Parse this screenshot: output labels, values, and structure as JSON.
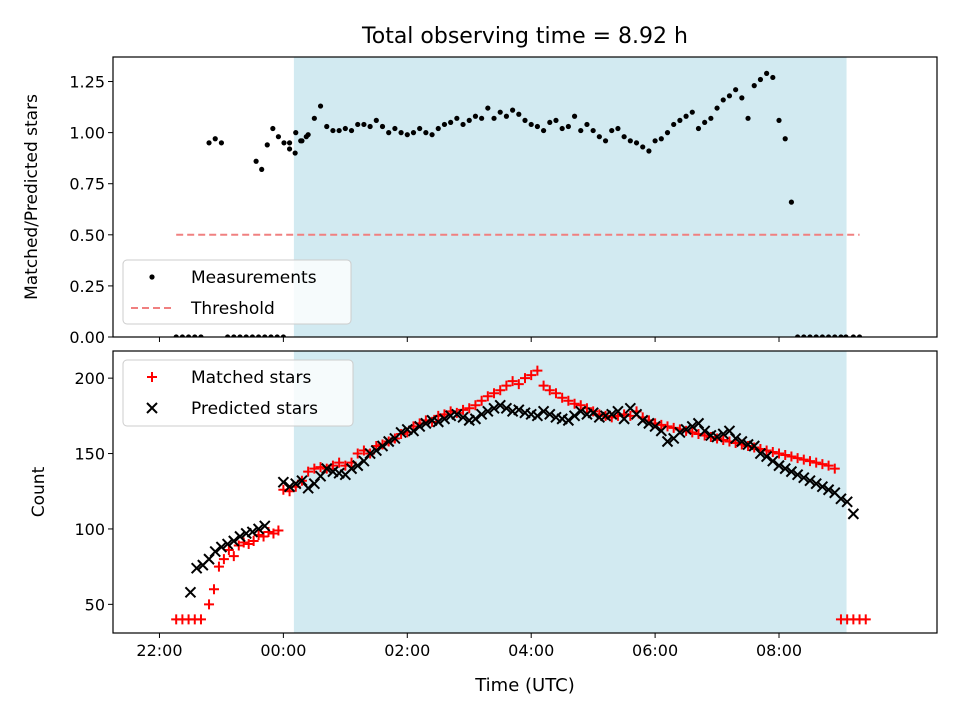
{
  "figure": {
    "title": "Total observing time = 8.92 h",
    "xlabel": "Time (UTC)",
    "x_tick_labels": [
      "22:00",
      "00:00",
      "02:00",
      "04:00",
      "06:00",
      "08:00"
    ],
    "colors": {
      "span": "#add8e6",
      "measurements": "#000000",
      "threshold": "#f08080",
      "matched": "#ff0000",
      "predicted": "#000000"
    }
  },
  "chart_data": [
    {
      "type": "scatter",
      "ylabel": "Matched/Predicted stars",
      "x_unit": "hours since 00:00 UTC",
      "xlim": [
        -2.75,
        10.55
      ],
      "ylim": [
        0,
        1.37
      ],
      "yticks": [
        0.0,
        0.25,
        0.5,
        0.75,
        1.0,
        1.25
      ],
      "ytick_labels": [
        "0.00",
        "0.25",
        "0.50",
        "0.75",
        "1.00",
        "1.25"
      ],
      "shaded_span": [
        0.17,
        9.09
      ],
      "legend_position": "lower-left",
      "series": [
        {
          "name": "Measurements",
          "kind": "scatter",
          "x": [
            -1.73,
            -1.63,
            -1.53,
            -1.43,
            -1.33,
            -0.44,
            -0.35,
            -0.26,
            -0.17,
            -0.08,
            0.01,
            0.1,
            0.19,
            0.28,
            0.37,
            -1.2,
            -1.1,
            -1.0,
            -0.9,
            -0.8,
            -0.7,
            -0.6,
            -0.5,
            -0.4,
            -0.3,
            -0.2,
            -0.1,
            0.0,
            0.1,
            0.2,
            0.3,
            0.4,
            0.5,
            0.6,
            0.7,
            0.8,
            0.9,
            1.0,
            1.1,
            1.2,
            1.3,
            1.4,
            1.5,
            1.6,
            1.7,
            1.8,
            1.9,
            2.0,
            2.1,
            2.2,
            2.3,
            2.4,
            2.5,
            2.6,
            2.7,
            2.8,
            2.9,
            3.0,
            3.1,
            3.2,
            3.3,
            3.4,
            3.5,
            3.6,
            3.7,
            3.8,
            3.9,
            4.0,
            4.1,
            4.2,
            4.3,
            4.4,
            4.5,
            4.6,
            4.7,
            4.8,
            4.9,
            5.0,
            5.1,
            5.2,
            5.3,
            5.4,
            5.5,
            5.6,
            5.7,
            5.8,
            5.9,
            6.0,
            6.1,
            6.2,
            6.3,
            6.4,
            6.5,
            6.6,
            6.7,
            6.8,
            6.9,
            7.0,
            7.1,
            7.2,
            7.3,
            7.4,
            7.5,
            7.6,
            7.7,
            7.8,
            7.9,
            8.0,
            8.1,
            8.2,
            8.3,
            8.4,
            8.5,
            8.6,
            8.7,
            8.8,
            8.9,
            9.0,
            9.08,
            9.2,
            9.3
          ],
          "y": [
            0.0,
            0.0,
            0.0,
            0.0,
            0.0,
            0.86,
            0.82,
            0.94,
            1.02,
            0.98,
            0.95,
            0.92,
            0.9,
            0.96,
            0.98,
            0.95,
            0.97,
            0.95,
            0.0,
            0.0,
            0.0,
            0.0,
            0.0,
            0.0,
            0.0,
            0.0,
            0.0,
            0.0,
            0.95,
            1.0,
            0.96,
            0.99,
            1.07,
            1.13,
            1.03,
            1.01,
            1.01,
            1.02,
            1.01,
            1.04,
            1.04,
            1.03,
            1.06,
            1.03,
            1.0,
            1.02,
            1.0,
            0.99,
            1.0,
            1.02,
            1.0,
            0.99,
            1.02,
            1.04,
            1.05,
            1.07,
            1.04,
            1.06,
            1.08,
            1.07,
            1.12,
            1.07,
            1.1,
            1.08,
            1.11,
            1.09,
            1.06,
            1.04,
            1.03,
            1.01,
            1.05,
            1.06,
            1.02,
            1.03,
            1.08,
            1.01,
            1.04,
            1.01,
            0.98,
            0.96,
            1.01,
            1.02,
            0.98,
            0.96,
            0.95,
            0.93,
            0.91,
            0.96,
            0.97,
            1.0,
            1.04,
            1.06,
            1.08,
            1.1,
            1.02,
            1.05,
            1.07,
            1.12,
            1.16,
            1.18,
            1.21,
            1.17,
            1.07,
            1.23,
            1.26,
            1.29,
            1.27,
            1.06,
            0.97,
            0.66,
            0.0,
            0.0,
            0.0,
            0.0,
            0.0,
            0.0,
            0.0,
            0.0,
            0.0,
            0.0,
            0.0
          ]
        },
        {
          "name": "Threshold",
          "kind": "line",
          "x": [
            -1.73,
            9.3
          ],
          "y": [
            0.5,
            0.5
          ]
        }
      ]
    },
    {
      "type": "scatter",
      "ylabel": "Count",
      "x_unit": "hours since 00:00 UTC",
      "xlim": [
        -2.75,
        10.55
      ],
      "ylim": [
        31,
        218
      ],
      "yticks": [
        50,
        100,
        150,
        200
      ],
      "ytick_labels": [
        "50",
        "100",
        "150",
        "200"
      ],
      "shaded_span": [
        0.17,
        9.09
      ],
      "legend_position": "upper-left",
      "series": [
        {
          "name": "Matched stars",
          "kind": "plus",
          "x": [
            -1.73,
            -1.63,
            -1.53,
            -1.43,
            -1.33,
            -1.2,
            -1.12,
            -1.04,
            -0.96,
            -0.88,
            -0.8,
            -0.72,
            -0.64,
            -0.56,
            -0.48,
            -0.4,
            -0.32,
            -0.24,
            -0.16,
            -0.08,
            0.0,
            0.1,
            0.2,
            0.3,
            0.4,
            0.5,
            0.6,
            0.7,
            0.8,
            0.9,
            1.0,
            1.1,
            1.2,
            1.3,
            1.4,
            1.5,
            1.6,
            1.7,
            1.8,
            1.9,
            2.0,
            2.1,
            2.2,
            2.3,
            2.4,
            2.5,
            2.6,
            2.7,
            2.8,
            2.9,
            3.0,
            3.1,
            3.2,
            3.3,
            3.4,
            3.5,
            3.6,
            3.7,
            3.8,
            3.9,
            4.0,
            4.1,
            4.2,
            4.3,
            4.4,
            4.5,
            4.6,
            4.7,
            4.8,
            4.9,
            5.0,
            5.1,
            5.2,
            5.3,
            5.4,
            5.5,
            5.6,
            5.7,
            5.8,
            5.9,
            6.0,
            6.1,
            6.2,
            6.3,
            6.4,
            6.5,
            6.6,
            6.7,
            6.8,
            6.9,
            7.0,
            7.1,
            7.2,
            7.3,
            7.4,
            7.5,
            7.6,
            7.7,
            7.8,
            7.9,
            8.0,
            8.1,
            8.2,
            8.3,
            8.4,
            8.5,
            8.6,
            8.7,
            8.8,
            8.9,
            9.0,
            9.1,
            9.2,
            9.3,
            9.4
          ],
          "y": [
            40,
            40,
            40,
            40,
            40,
            50,
            60,
            75,
            80,
            86,
            82,
            89,
            91,
            90,
            92,
            96,
            95,
            98,
            97,
            99,
            126,
            125,
            128,
            132,
            138,
            140,
            141,
            140,
            142,
            144,
            142,
            144,
            150,
            152,
            150,
            155,
            156,
            158,
            160,
            163,
            164,
            168,
            170,
            172,
            171,
            175,
            176,
            178,
            177,
            179,
            180,
            182,
            185,
            188,
            190,
            192,
            195,
            198,
            196,
            200,
            202,
            205,
            195,
            192,
            190,
            187,
            185,
            183,
            182,
            180,
            178,
            176,
            175,
            174,
            175,
            176,
            175,
            178,
            174,
            172,
            170,
            169,
            168,
            167,
            166,
            165,
            164,
            163,
            162,
            161,
            160,
            159,
            158,
            157,
            156,
            155,
            154,
            153,
            152,
            151,
            150,
            149,
            148,
            147,
            146,
            145,
            144,
            143,
            142,
            140,
            40,
            40,
            40,
            40,
            40
          ]
        },
        {
          "name": "Predicted stars",
          "kind": "x",
          "x": [
            -1.5,
            -1.4,
            -1.3,
            -1.2,
            -1.1,
            -1.0,
            -0.9,
            -0.8,
            -0.7,
            -0.6,
            -0.5,
            -0.4,
            -0.3,
            0.0,
            0.1,
            0.2,
            0.3,
            0.4,
            0.5,
            0.6,
            0.7,
            0.8,
            0.9,
            1.0,
            1.1,
            1.2,
            1.3,
            1.4,
            1.5,
            1.6,
            1.7,
            1.8,
            1.9,
            2.0,
            2.1,
            2.2,
            2.3,
            2.4,
            2.5,
            2.6,
            2.7,
            2.8,
            2.9,
            3.0,
            3.1,
            3.2,
            3.3,
            3.4,
            3.5,
            3.6,
            3.7,
            3.8,
            3.9,
            4.0,
            4.1,
            4.2,
            4.3,
            4.4,
            4.5,
            4.6,
            4.7,
            4.8,
            4.9,
            5.0,
            5.1,
            5.2,
            5.3,
            5.4,
            5.5,
            5.6,
            5.7,
            5.8,
            5.9,
            6.0,
            6.1,
            6.2,
            6.3,
            6.4,
            6.5,
            6.6,
            6.7,
            6.8,
            6.9,
            7.0,
            7.1,
            7.2,
            7.3,
            7.4,
            7.5,
            7.6,
            7.7,
            7.8,
            7.9,
            8.0,
            8.1,
            8.2,
            8.3,
            8.4,
            8.5,
            8.6,
            8.7,
            8.8,
            8.9,
            9.0,
            9.1,
            9.2
          ],
          "y": [
            58,
            74,
            76,
            80,
            85,
            88,
            90,
            92,
            95,
            97,
            98,
            100,
            102,
            131,
            128,
            130,
            132,
            127,
            130,
            135,
            140,
            138,
            137,
            136,
            140,
            142,
            145,
            150,
            152,
            155,
            158,
            160,
            164,
            166,
            165,
            168,
            170,
            172,
            171,
            173,
            175,
            176,
            174,
            172,
            173,
            176,
            178,
            180,
            182,
            180,
            178,
            179,
            177,
            176,
            175,
            178,
            176,
            174,
            173,
            172,
            175,
            178,
            176,
            177,
            174,
            175,
            176,
            178,
            173,
            180,
            176,
            172,
            170,
            168,
            165,
            158,
            160,
            164,
            166,
            168,
            170,
            165,
            162,
            161,
            163,
            165,
            160,
            158,
            156,
            155,
            150,
            148,
            145,
            142,
            140,
            138,
            136,
            134,
            132,
            130,
            128,
            126,
            124,
            120,
            118,
            110
          ]
        }
      ]
    }
  ]
}
